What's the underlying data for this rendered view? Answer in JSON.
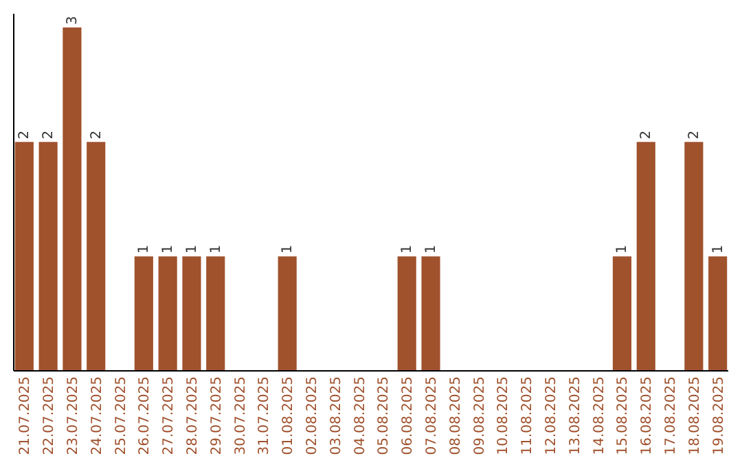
{
  "chart_data": {
    "type": "bar",
    "categories": [
      "21.07.2025",
      "22.07.2025",
      "23.07.2025",
      "24.07.2025",
      "25.07.2025",
      "26.07.2025",
      "27.07.2025",
      "28.07.2025",
      "29.07.2025",
      "30.07.2025",
      "31.07.2025",
      "01.08.2025",
      "02.08.2025",
      "03.08.2025",
      "04.08.2025",
      "05.08.2025",
      "06.08.2025",
      "07.08.2025",
      "08.08.2025",
      "09.08.2025",
      "10.08.2025",
      "11.08.2025",
      "12.08.2025",
      "13.08.2025",
      "14.08.2025",
      "15.08.2025",
      "16.08.2025",
      "17.08.2025",
      "18.08.2025",
      "19.08.2025"
    ],
    "values": [
      2,
      2,
      3,
      2,
      0,
      1,
      1,
      1,
      1,
      0,
      0,
      1,
      0,
      0,
      0,
      0,
      1,
      1,
      0,
      0,
      0,
      0,
      0,
      0,
      0,
      1,
      2,
      0,
      2,
      1
    ],
    "value_labels": [
      "2",
      "2",
      "3",
      "2",
      null,
      "1",
      "1",
      "1",
      "1",
      null,
      null,
      "1",
      null,
      null,
      null,
      null,
      "1",
      "1",
      null,
      null,
      null,
      null,
      null,
      null,
      null,
      "1",
      "2",
      null,
      "2",
      "1"
    ],
    "color": "#a0522d"
  }
}
